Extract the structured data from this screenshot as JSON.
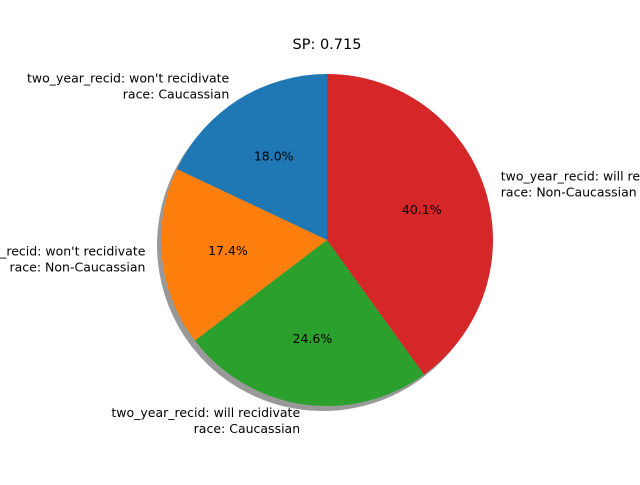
{
  "chart_data": {
    "type": "pie",
    "title": "SP: 0.715",
    "slices": [
      {
        "label_lines": [
          "two_year_recid: won't recidivate",
          "race: Caucassian"
        ],
        "value": 18.0,
        "pct_label": "18.0%",
        "color": "#1f77b4"
      },
      {
        "label_lines": [
          "two_year_recid: won't recidivate",
          "race: Non-Caucassian"
        ],
        "value": 17.4,
        "pct_label": "17.4%",
        "color": "#ff7f0e"
      },
      {
        "label_lines": [
          "two_year_recid: will recidivate",
          "race: Caucassian"
        ],
        "value": 24.6,
        "pct_label": "24.6%",
        "color": "#2ca02c"
      },
      {
        "label_lines": [
          "two_year_recid: will recidivate",
          "race: Non-Caucassian"
        ],
        "value": 40.1,
        "pct_label": "40.1%",
        "color": "#d62728"
      }
    ],
    "start_angle_deg": 90,
    "direction": "counterclockwise",
    "shadow": true,
    "legend": "none"
  }
}
